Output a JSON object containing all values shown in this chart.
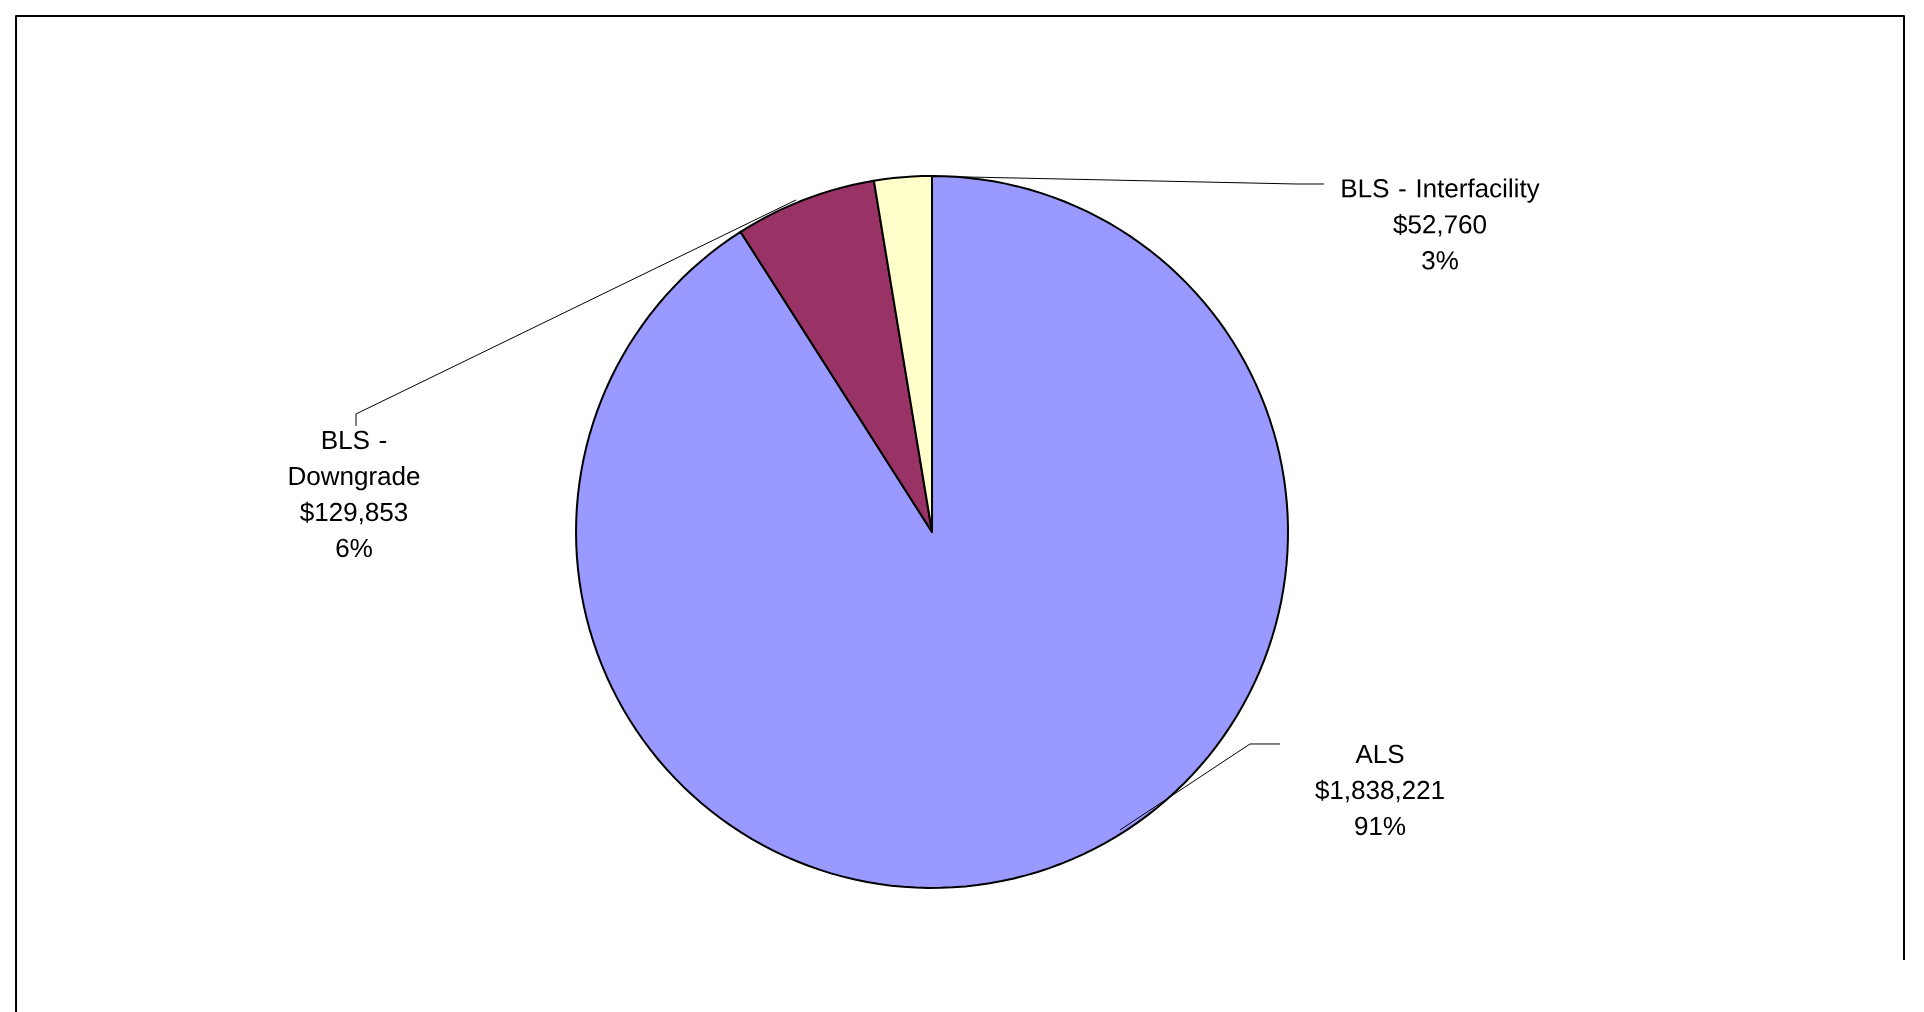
{
  "chart_data": {
    "type": "pie",
    "categories": [
      "ALS",
      "BLS - Downgrade",
      "BLS - Interfacility"
    ],
    "values": [
      1838221,
      129853,
      52760
    ],
    "colors": [
      "#9999ff",
      "#993366",
      "#ffffcc"
    ],
    "value_labels": [
      "$1,838,221",
      "$129,853",
      "$52,760"
    ],
    "annotations": [
      "91%",
      "6%",
      "3%"
    ]
  }
}
